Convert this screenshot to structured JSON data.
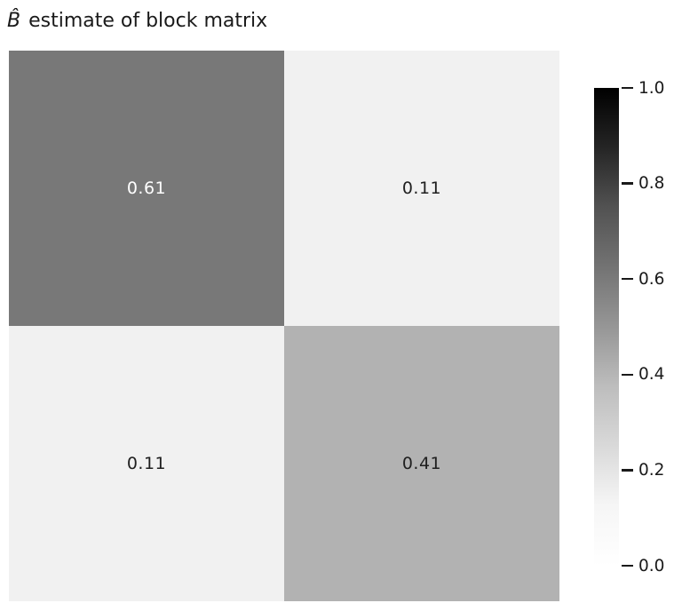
{
  "title": {
    "math": "B̂",
    "rest": " estimate of block matrix",
    "full": "B̂ estimate of block matrix"
  },
  "chart_data": {
    "type": "heatmap",
    "title": "B̂ estimate of block matrix",
    "rows": 2,
    "cols": 2,
    "matrix": [
      [
        0.61,
        0.11
      ],
      [
        0.11,
        0.41
      ]
    ],
    "cell_labels": [
      [
        "0.61",
        "0.11"
      ],
      [
        "0.11",
        "0.41"
      ]
    ],
    "colormap": "Greys",
    "vmin": 0.0,
    "vmax": 1.0,
    "colorbar_ticks": [
      "1.0",
      "0.8",
      "0.6",
      "0.4",
      "0.2",
      "0.0"
    ],
    "legend_position": "right",
    "grid": false,
    "axis_tick_labels": "none"
  },
  "cells": [
    {
      "label": "0.61",
      "bg": "#787878",
      "fg": "#ffffff"
    },
    {
      "label": "0.11",
      "bg": "#f1f1f1",
      "fg": "#1f1f1f"
    },
    {
      "label": "0.11",
      "bg": "#f1f1f1",
      "fg": "#1f1f1f"
    },
    {
      "label": "0.41",
      "bg": "#b2b2b2",
      "fg": "#1f1f1f"
    }
  ],
  "colorbar": {
    "orientation": "vertical",
    "top_value": 1.0,
    "bottom_value": 0.0,
    "gradient_stops": [
      "#000000",
      "#252525",
      "#525252",
      "#737373",
      "#969696",
      "#bdbdbd",
      "#d9d9d9",
      "#f6f6f6",
      "#ffffff"
    ],
    "ticks": [
      {
        "label": "1.0",
        "value": 1.0
      },
      {
        "label": "0.8",
        "value": 0.8
      },
      {
        "label": "0.6",
        "value": 0.6
      },
      {
        "label": "0.4",
        "value": 0.4
      },
      {
        "label": "0.2",
        "value": 0.2
      },
      {
        "label": "0.0",
        "value": 0.0
      }
    ]
  },
  "colors": {
    "background": "#ffffff",
    "text": "#1a1a1a"
  }
}
